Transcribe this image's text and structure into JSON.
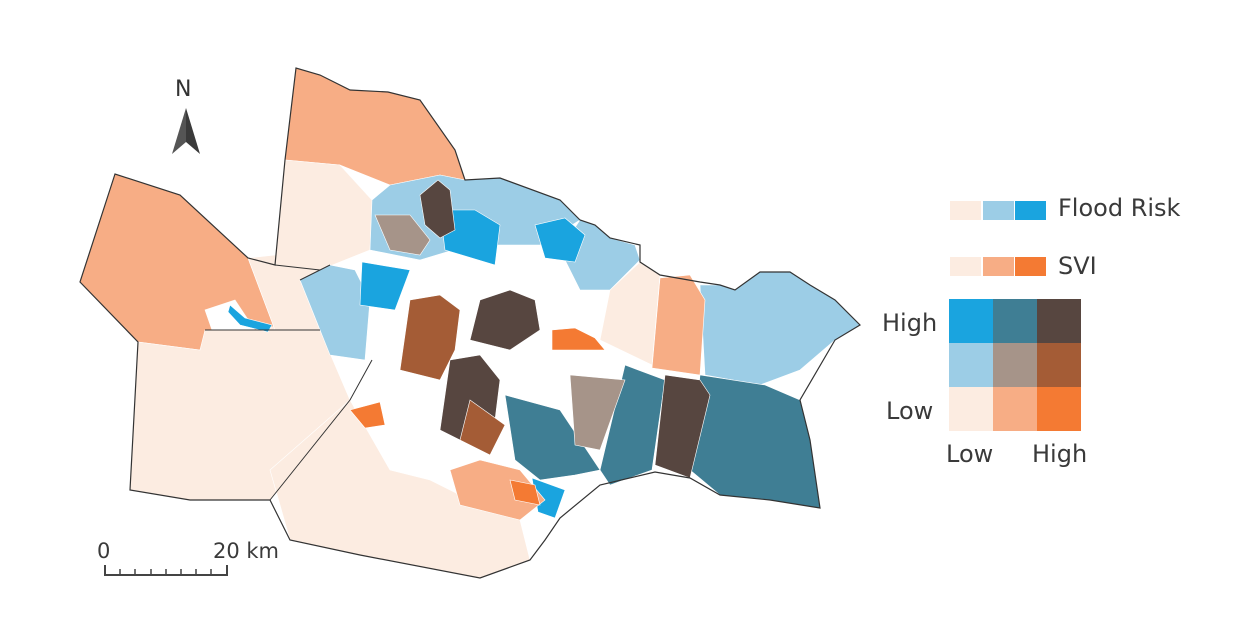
{
  "north_arrow": {
    "label": "N",
    "icon": "north-arrow-icon"
  },
  "scale_bar": {
    "start_label": "0",
    "end_label": "20 km",
    "icon": "scale-bar-icon"
  },
  "legend": {
    "flood_risk_label": "Flood Risk",
    "svi_label": "SVI",
    "flood_colors": [
      "#fcece1",
      "#9ccde6",
      "#1aa4df"
    ],
    "svi_colors": [
      "#fcece1",
      "#f7ad85",
      "#f47a33"
    ],
    "y_axis_high": "High",
    "y_axis_low": "Low",
    "x_axis_low": "Low",
    "x_axis_high": "High",
    "matrix_colors": [
      [
        "#1aa4df",
        "#3f7e94",
        "#574640"
      ],
      [
        "#9ccde6",
        "#a69489",
        "#a45c36"
      ],
      [
        "#fcece1",
        "#f7ad85",
        "#f47a33"
      ]
    ]
  },
  "map_colors": {
    "low_low": "#fcece1",
    "low_flood_mid_svi": "#f7ad85",
    "low_flood_high_svi": "#f47a33",
    "mid_flood_low_svi": "#9ccde6",
    "mid_mid": "#a69489",
    "mid_flood_high_svi": "#a45c36",
    "high_flood_low_svi": "#1aa4df",
    "high_flood_mid_svi": "#3f7e94",
    "high_high": "#574640",
    "boundary": "#333333"
  }
}
